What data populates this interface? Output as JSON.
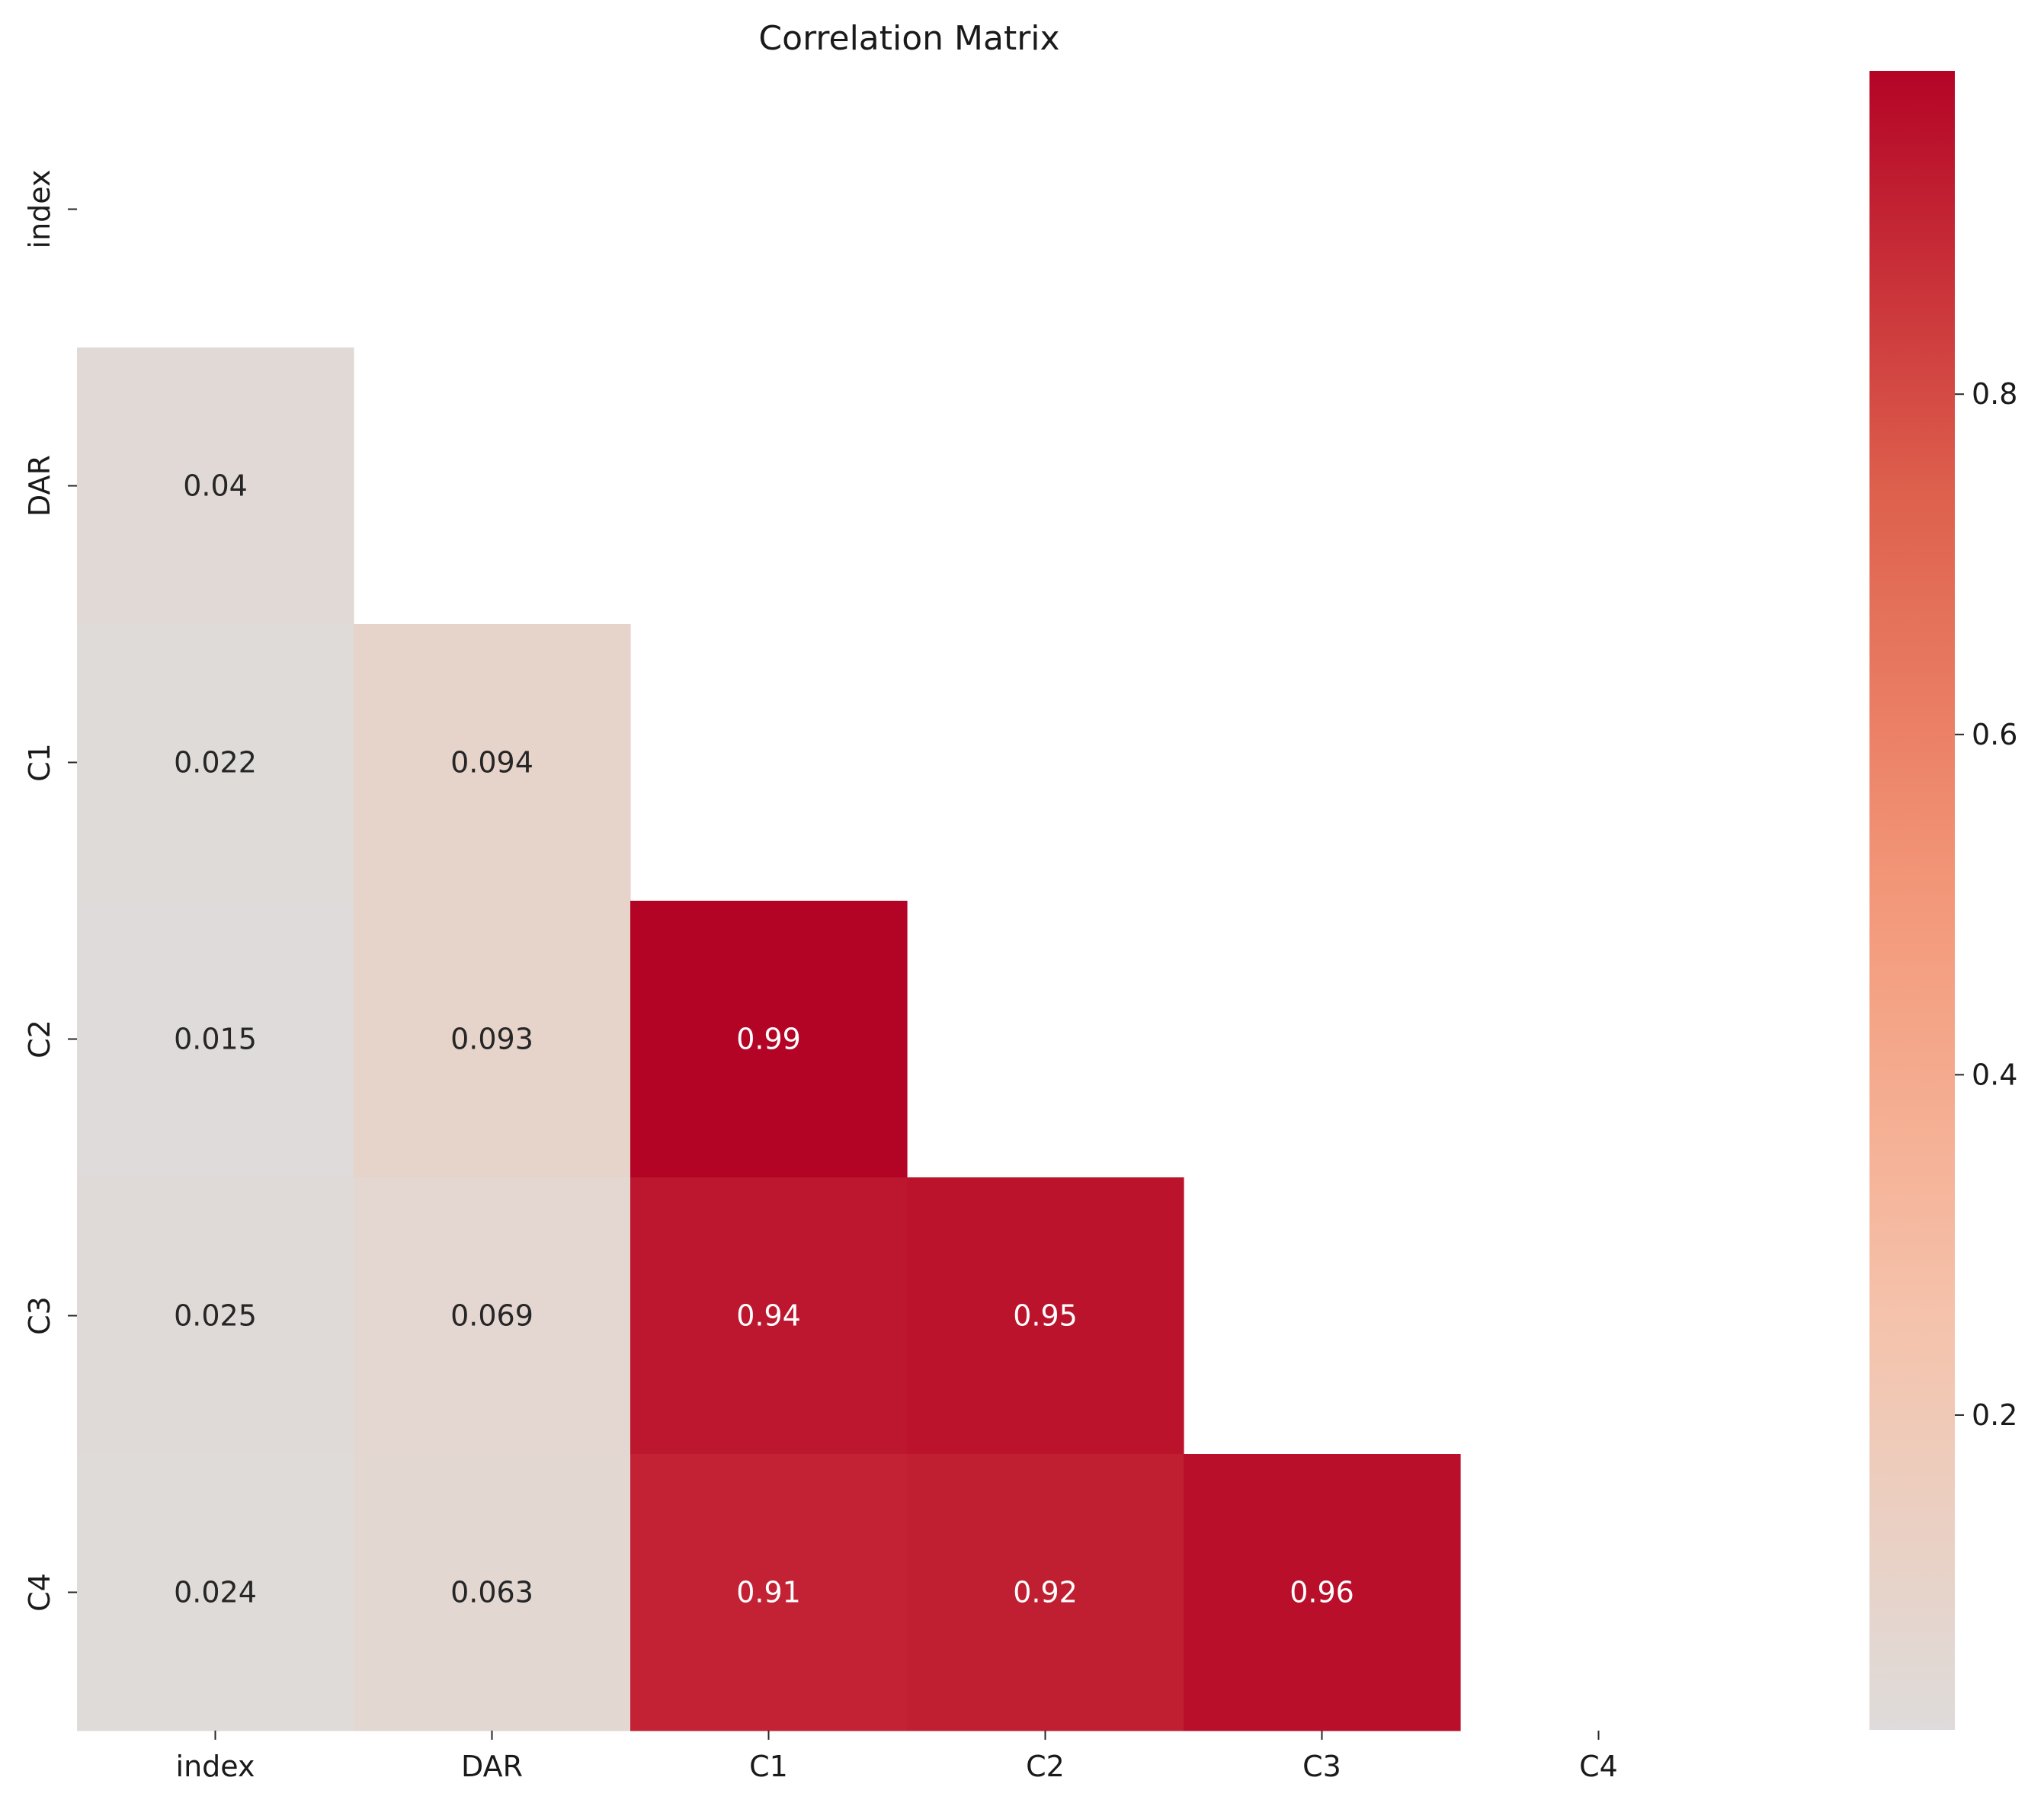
{
  "chart_data": {
    "type": "heatmap",
    "title": "Correlation Matrix",
    "xlabel": "",
    "ylabel": "",
    "x_labels": [
      "index",
      "DAR",
      "C1",
      "C2",
      "C3",
      "C4"
    ],
    "y_labels": [
      "index",
      "DAR",
      "C1",
      "C2",
      "C3",
      "C4"
    ],
    "mask": "upper-triangle-including-diagonal",
    "cells": [
      {
        "row": 1,
        "col": 0,
        "value": 0.04,
        "label": "0.04"
      },
      {
        "row": 2,
        "col": 0,
        "value": 0.022,
        "label": "0.022"
      },
      {
        "row": 2,
        "col": 1,
        "value": 0.094,
        "label": "0.094"
      },
      {
        "row": 3,
        "col": 0,
        "value": 0.015,
        "label": "0.015"
      },
      {
        "row": 3,
        "col": 1,
        "value": 0.093,
        "label": "0.093"
      },
      {
        "row": 3,
        "col": 2,
        "value": 0.99,
        "label": "0.99"
      },
      {
        "row": 4,
        "col": 0,
        "value": 0.025,
        "label": "0.025"
      },
      {
        "row": 4,
        "col": 1,
        "value": 0.069,
        "label": "0.069"
      },
      {
        "row": 4,
        "col": 2,
        "value": 0.94,
        "label": "0.94"
      },
      {
        "row": 4,
        "col": 3,
        "value": 0.95,
        "label": "0.95"
      },
      {
        "row": 5,
        "col": 0,
        "value": 0.024,
        "label": "0.024"
      },
      {
        "row": 5,
        "col": 1,
        "value": 0.063,
        "label": "0.063"
      },
      {
        "row": 5,
        "col": 2,
        "value": 0.91,
        "label": "0.91"
      },
      {
        "row": 5,
        "col": 3,
        "value": 0.92,
        "label": "0.92"
      },
      {
        "row": 5,
        "col": 4,
        "value": 0.96,
        "label": "0.96"
      }
    ],
    "colorbar": {
      "colormap": "coolwarm",
      "vmin": 0.015,
      "vmax": 0.99,
      "center": 0,
      "ticks": [
        0.2,
        0.4,
        0.6,
        0.8
      ],
      "tick_labels": [
        "0.2",
        "0.4",
        "0.6",
        "0.8"
      ],
      "placement": "right"
    },
    "grid": false,
    "legend": "none"
  }
}
